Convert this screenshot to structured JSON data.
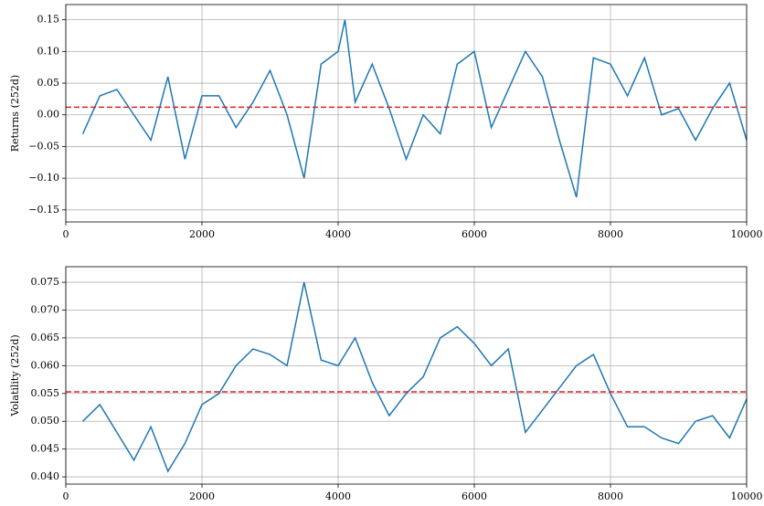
{
  "chart_data": [
    {
      "type": "line",
      "ylabel": "Returns (252d)",
      "x": [
        250,
        500,
        750,
        1000,
        1250,
        1500,
        1750,
        2000,
        2250,
        2500,
        2750,
        3000,
        3250,
        3500,
        3750,
        4000,
        4100,
        4250,
        4500,
        4750,
        5000,
        5250,
        5500,
        5750,
        6000,
        6250,
        6500,
        6750,
        7000,
        7250,
        7500,
        7750,
        8000,
        8250,
        8500,
        8750,
        9000,
        9250,
        9500,
        9750,
        10000
      ],
      "series": [
        {
          "name": "Returns",
          "color": "#1f77b4",
          "values": [
            -0.03,
            0.03,
            0.04,
            0.0,
            -0.04,
            0.06,
            -0.07,
            0.03,
            0.03,
            -0.02,
            0.02,
            0.07,
            0.0,
            -0.1,
            0.08,
            0.1,
            0.15,
            0.02,
            0.08,
            0.01,
            -0.07,
            0.0,
            -0.03,
            0.08,
            0.1,
            -0.02,
            0.04,
            0.1,
            0.06,
            -0.04,
            -0.13,
            0.09,
            0.08,
            0.03,
            0.09,
            0.0,
            0.01,
            -0.04,
            0.01,
            0.05,
            -0.04
          ]
        }
      ],
      "mean_line": {
        "value": 0.012,
        "color": "#d62728",
        "style": "dashed"
      },
      "xlim": [
        0,
        10000
      ],
      "xticks": [
        0,
        2000,
        4000,
        6000,
        8000,
        10000
      ],
      "ylim": [
        -0.169,
        0.174
      ],
      "yticks": [
        {
          "value": -0.15,
          "label": "−0.15"
        },
        {
          "value": -0.1,
          "label": "−0.10"
        },
        {
          "value": -0.05,
          "label": "−0.05"
        },
        {
          "value": 0,
          "label": "0.00"
        },
        {
          "value": 0.05,
          "label": "0.05"
        },
        {
          "value": 0.1,
          "label": "0.10"
        },
        {
          "value": 0.15,
          "label": "0.15"
        }
      ],
      "grid": true
    },
    {
      "type": "line",
      "ylabel": "Volatility (252d)",
      "x": [
        250,
        500,
        750,
        1000,
        1250,
        1500,
        1750,
        2000,
        2250,
        2500,
        2750,
        3000,
        3250,
        3500,
        3750,
        4000,
        4250,
        4500,
        4750,
        5000,
        5250,
        5500,
        5750,
        6000,
        6250,
        6500,
        6750,
        7000,
        7250,
        7500,
        7750,
        8000,
        8250,
        8500,
        8750,
        9000,
        9250,
        9500,
        9750,
        10000
      ],
      "series": [
        {
          "name": "Volatility",
          "color": "#1f77b4",
          "values": [
            0.05,
            0.053,
            0.048,
            0.043,
            0.049,
            0.041,
            0.046,
            0.053,
            0.055,
            0.06,
            0.063,
            0.062,
            0.06,
            0.075,
            0.061,
            0.06,
            0.065,
            0.057,
            0.051,
            0.055,
            0.058,
            0.065,
            0.067,
            0.064,
            0.06,
            0.063,
            0.048,
            0.052,
            0.056,
            0.06,
            0.062,
            0.055,
            0.049,
            0.049,
            0.047,
            0.046,
            0.05,
            0.051,
            0.047,
            0.054
          ]
        }
      ],
      "mean_line": {
        "value": 0.0553,
        "color": "#d62728",
        "style": "dashed"
      },
      "xlim": [
        0,
        10000
      ],
      "xticks": [
        0,
        2000,
        4000,
        6000,
        8000,
        10000
      ],
      "ylim": [
        0.0387,
        0.0778
      ],
      "yticks": [
        {
          "value": 0.04,
          "label": "0.040"
        },
        {
          "value": 0.045,
          "label": "0.045"
        },
        {
          "value": 0.05,
          "label": "0.050"
        },
        {
          "value": 0.055,
          "label": "0.055"
        },
        {
          "value": 0.06,
          "label": "0.060"
        },
        {
          "value": 0.065,
          "label": "0.065"
        },
        {
          "value": 0.07,
          "label": "0.070"
        },
        {
          "value": 0.075,
          "label": "0.075"
        }
      ],
      "grid": true
    }
  ]
}
